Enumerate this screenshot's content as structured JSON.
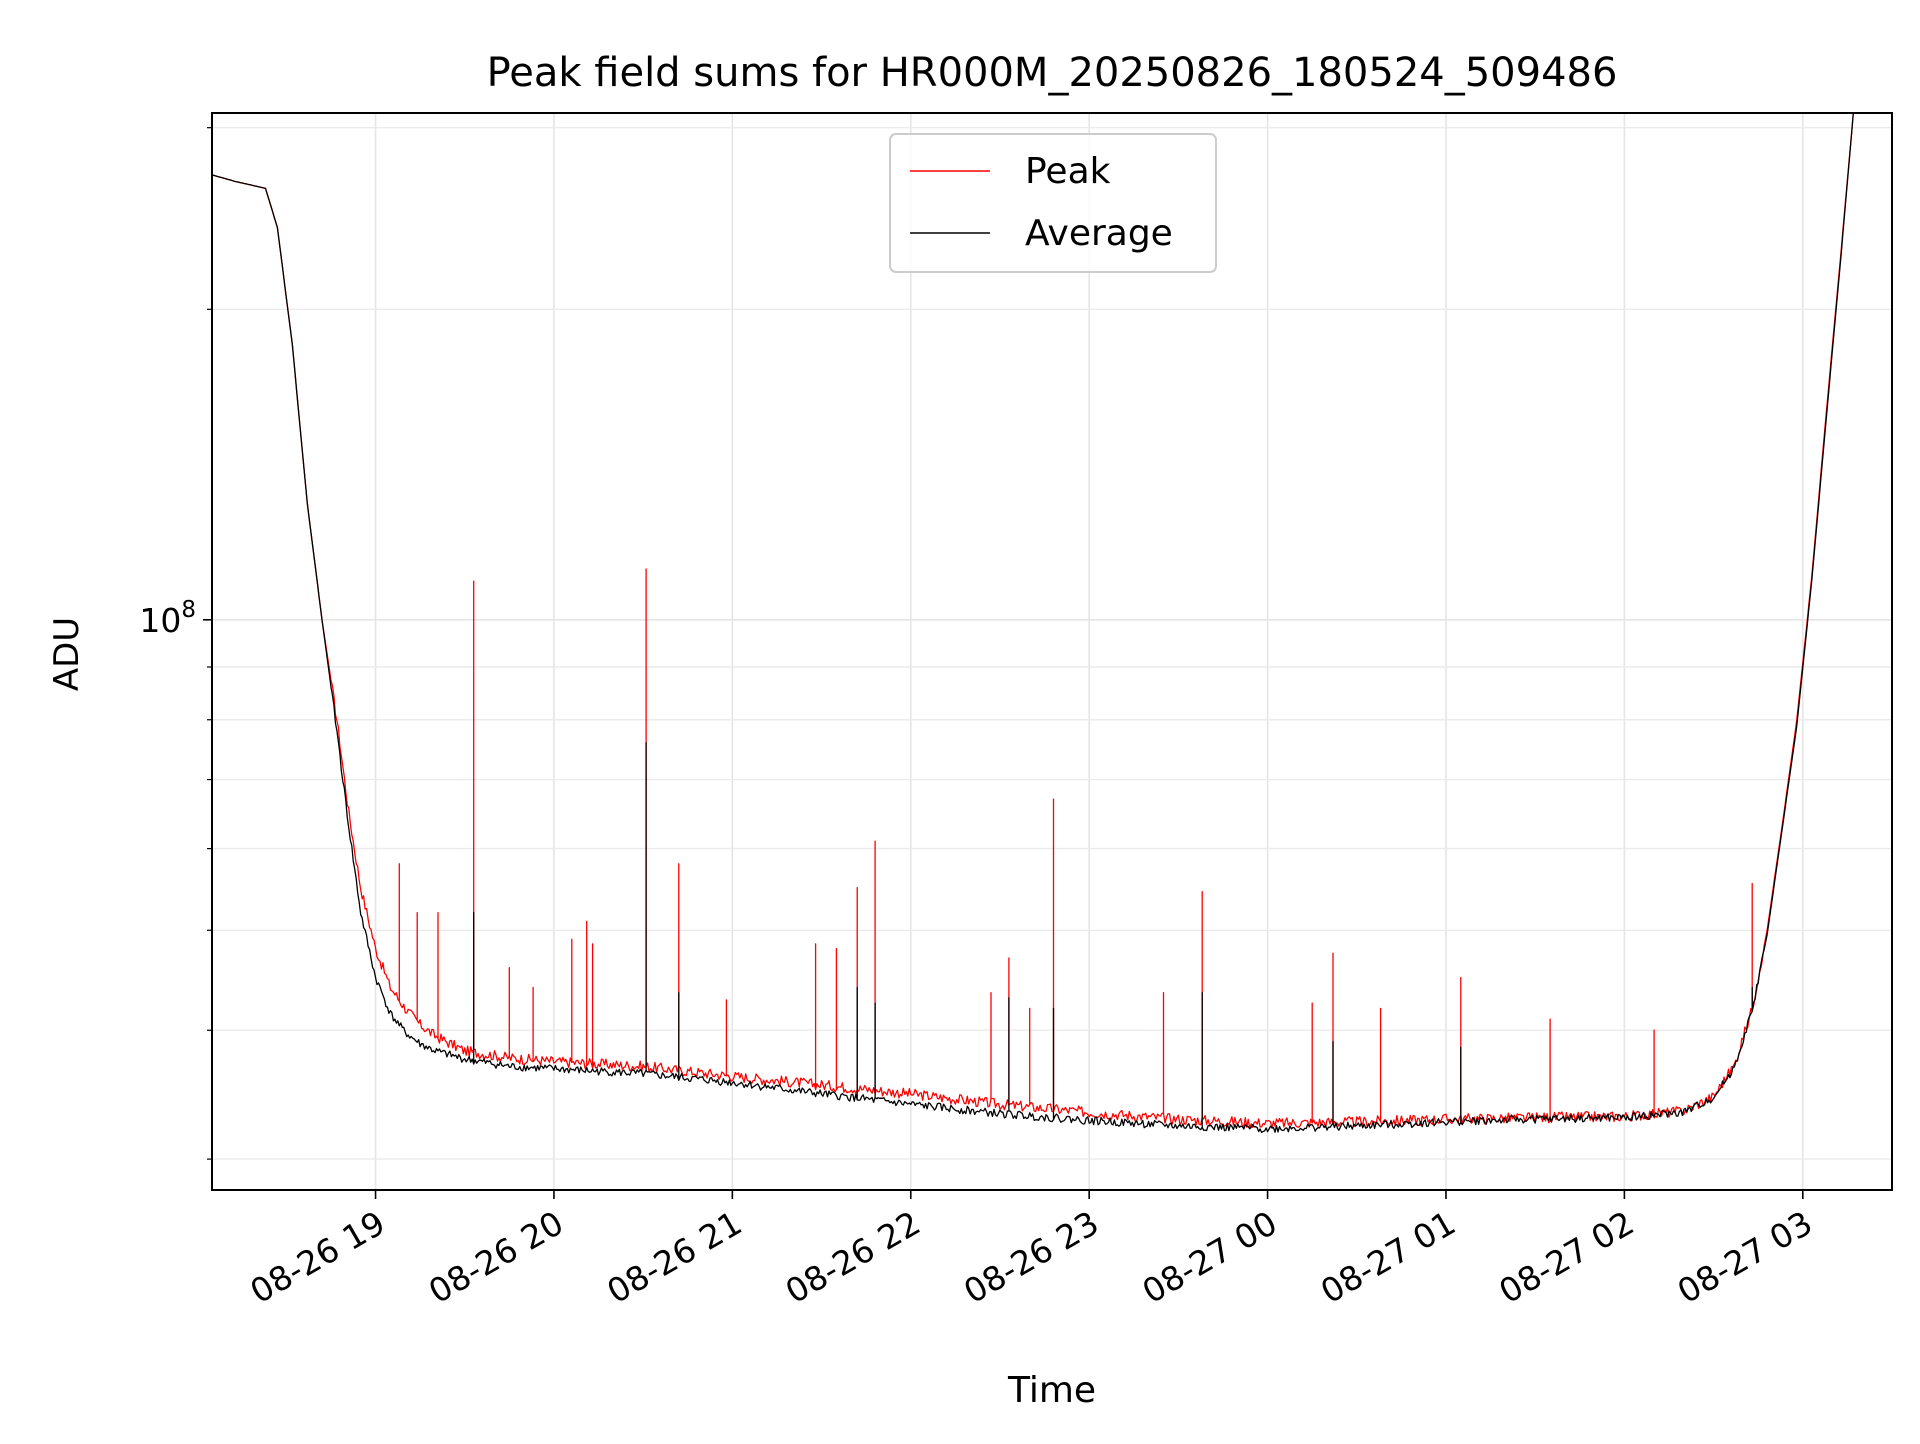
{
  "chart_data": {
    "type": "line",
    "title": "Peak field sums for HR000M_20250826_180524_509486",
    "xlabel": "Time",
    "ylabel": "ADU",
    "y_scale": "log",
    "ylim": [
      28000000,
      310000000
    ],
    "xlim": [
      "2025-08-26 18:05",
      "2025-08-27 03:30"
    ],
    "x_ticks": [
      {
        "x": "2025-08-26 19:00",
        "label": "08-26 19"
      },
      {
        "x": "2025-08-26 20:00",
        "label": "08-26 20"
      },
      {
        "x": "2025-08-26 21:00",
        "label": "08-26 21"
      },
      {
        "x": "2025-08-26 22:00",
        "label": "08-26 22"
      },
      {
        "x": "2025-08-26 23:00",
        "label": "08-26 23"
      },
      {
        "x": "2025-08-27 00:00",
        "label": "08-27 00"
      },
      {
        "x": "2025-08-27 01:00",
        "label": "08-27 01"
      },
      {
        "x": "2025-08-27 02:00",
        "label": "08-27 02"
      },
      {
        "x": "2025-08-27 03:00",
        "label": "08-27 03"
      }
    ],
    "y_major_ticks": [
      {
        "value": 100000000,
        "label_base": "10",
        "label_exp": "8"
      }
    ],
    "y_minor_ticks": [
      30000000,
      40000000,
      50000000,
      60000000,
      70000000,
      80000000,
      90000000,
      200000000,
      300000000
    ],
    "grid": true,
    "legend_position": "top-center",
    "series": [
      {
        "name": "Peak",
        "color": "#ff0000",
        "points": [
          [
            "2025-08-26 18:05",
            270000000
          ],
          [
            "2025-08-26 18:13",
            266000000
          ],
          [
            "2025-08-26 18:18",
            264000000
          ],
          [
            "2025-08-26 18:23",
            262000000
          ],
          [
            "2025-08-26 18:27",
            240000000
          ],
          [
            "2025-08-26 18:32",
            185000000
          ],
          [
            "2025-08-26 18:37",
            130000000
          ],
          [
            "2025-08-26 18:42",
            100000000
          ],
          [
            "2025-08-26 18:47",
            80000000
          ],
          [
            "2025-08-26 18:51",
            65000000
          ],
          [
            "2025-08-26 18:55",
            55000000
          ],
          [
            "2025-08-26 19:00",
            48000000
          ],
          [
            "2025-08-26 19:05",
            44000000
          ],
          [
            "2025-08-26 19:10",
            42000000
          ],
          [
            "2025-08-26 19:15",
            40500000
          ],
          [
            "2025-08-26 19:20",
            39500000
          ],
          [
            "2025-08-26 19:30",
            38200000
          ],
          [
            "2025-08-26 19:45",
            37600000
          ],
          [
            "2025-08-26 20:00",
            37300000
          ],
          [
            "2025-08-26 20:30",
            36900000
          ],
          [
            "2025-08-26 21:00",
            36100000
          ],
          [
            "2025-08-26 21:30",
            35400000
          ],
          [
            "2025-08-26 22:00",
            34700000
          ],
          [
            "2025-08-26 22:30",
            33900000
          ],
          [
            "2025-08-26 23:00",
            33300000
          ],
          [
            "2025-08-26 23:30",
            32800000
          ],
          [
            "2025-08-27 00:00",
            32500000
          ],
          [
            "2025-08-27 00:30",
            32600000
          ],
          [
            "2025-08-27 01:00",
            32800000
          ],
          [
            "2025-08-27 01:30",
            32900000
          ],
          [
            "2025-08-27 02:00",
            33000000
          ],
          [
            "2025-08-27 02:20",
            33400000
          ],
          [
            "2025-08-27 02:30",
            34500000
          ],
          [
            "2025-08-27 02:37",
            37000000
          ],
          [
            "2025-08-27 02:43",
            42000000
          ],
          [
            "2025-08-27 02:48",
            50000000
          ],
          [
            "2025-08-27 02:53",
            63000000
          ],
          [
            "2025-08-27 02:58",
            80000000
          ],
          [
            "2025-08-27 03:03",
            110000000
          ],
          [
            "2025-08-27 03:08",
            160000000
          ],
          [
            "2025-08-27 03:13",
            230000000
          ],
          [
            "2025-08-27 03:17",
            310000000
          ]
        ],
        "spikes": [
          [
            "2025-08-26 19:08",
            58000000
          ],
          [
            "2025-08-26 19:14",
            52000000
          ],
          [
            "2025-08-26 19:21",
            52000000
          ],
          [
            "2025-08-26 19:33",
            109000000
          ],
          [
            "2025-08-26 19:45",
            46000000
          ],
          [
            "2025-08-26 19:53",
            44000000
          ],
          [
            "2025-08-26 20:06",
            49000000
          ],
          [
            "2025-08-26 20:11",
            51000000
          ],
          [
            "2025-08-26 20:13",
            48500000
          ],
          [
            "2025-08-26 20:31",
            112000000
          ],
          [
            "2025-08-26 20:42",
            58000000
          ],
          [
            "2025-08-26 20:58",
            42800000
          ],
          [
            "2025-08-26 21:28",
            48500000
          ],
          [
            "2025-08-26 21:35",
            48000000
          ],
          [
            "2025-08-26 21:42",
            55000000
          ],
          [
            "2025-08-26 21:48",
            61000000
          ],
          [
            "2025-08-26 22:27",
            43500000
          ],
          [
            "2025-08-26 22:33",
            47000000
          ],
          [
            "2025-08-26 22:40",
            42000000
          ],
          [
            "2025-08-26 22:48",
            67000000
          ],
          [
            "2025-08-26 23:25",
            43500000
          ],
          [
            "2025-08-26 23:38",
            54500000
          ],
          [
            "2025-08-27 00:15",
            42500000
          ],
          [
            "2025-08-27 00:22",
            47500000
          ],
          [
            "2025-08-27 00:38",
            42000000
          ],
          [
            "2025-08-27 01:05",
            45000000
          ],
          [
            "2025-08-27 01:35",
            41000000
          ],
          [
            "2025-08-27 02:10",
            40000000
          ],
          [
            "2025-08-27 02:43",
            55500000
          ]
        ]
      },
      {
        "name": "Average",
        "color": "#000000",
        "points": [
          [
            "2025-08-26 18:05",
            270000000
          ],
          [
            "2025-08-26 18:13",
            266000000
          ],
          [
            "2025-08-26 18:18",
            264000000
          ],
          [
            "2025-08-26 18:23",
            262000000
          ],
          [
            "2025-08-26 18:27",
            240000000
          ],
          [
            "2025-08-26 18:32",
            185000000
          ],
          [
            "2025-08-26 18:37",
            130000000
          ],
          [
            "2025-08-26 18:42",
            100000000
          ],
          [
            "2025-08-26 18:47",
            78000000
          ],
          [
            "2025-08-26 18:51",
            63000000
          ],
          [
            "2025-08-26 18:55",
            52000000
          ],
          [
            "2025-08-26 19:00",
            45000000
          ],
          [
            "2025-08-26 19:05",
            41500000
          ],
          [
            "2025-08-26 19:10",
            39800000
          ],
          [
            "2025-08-26 19:15",
            38800000
          ],
          [
            "2025-08-26 19:20",
            38200000
          ],
          [
            "2025-08-26 19:30",
            37500000
          ],
          [
            "2025-08-26 19:45",
            36900000
          ],
          [
            "2025-08-26 20:00",
            36700000
          ],
          [
            "2025-08-26 20:30",
            36300000
          ],
          [
            "2025-08-26 21:00",
            35600000
          ],
          [
            "2025-08-26 21:30",
            34700000
          ],
          [
            "2025-08-26 22:00",
            33900000
          ],
          [
            "2025-08-26 22:30",
            33200000
          ],
          [
            "2025-08-26 23:00",
            32700000
          ],
          [
            "2025-08-26 23:30",
            32300000
          ],
          [
            "2025-08-27 00:00",
            32100000
          ],
          [
            "2025-08-27 00:30",
            32300000
          ],
          [
            "2025-08-27 01:00",
            32600000
          ],
          [
            "2025-08-27 01:30",
            32800000
          ],
          [
            "2025-08-27 02:00",
            32900000
          ],
          [
            "2025-08-27 02:20",
            33300000
          ],
          [
            "2025-08-27 02:30",
            34400000
          ],
          [
            "2025-08-27 02:37",
            36800000
          ],
          [
            "2025-08-27 02:43",
            41800000
          ],
          [
            "2025-08-27 02:48",
            49500000
          ],
          [
            "2025-08-27 02:53",
            62500000
          ],
          [
            "2025-08-27 02:58",
            79000000
          ],
          [
            "2025-08-27 03:03",
            109000000
          ],
          [
            "2025-08-27 03:08",
            158000000
          ],
          [
            "2025-08-27 03:13",
            228000000
          ],
          [
            "2025-08-27 03:17",
            310000000
          ]
        ],
        "spikes": [
          [
            "2025-08-26 19:33",
            52000000
          ],
          [
            "2025-08-26 20:31",
            76000000
          ],
          [
            "2025-08-26 20:42",
            43500000
          ],
          [
            "2025-08-26 21:42",
            44000000
          ],
          [
            "2025-08-26 21:48",
            42500000
          ],
          [
            "2025-08-26 22:33",
            43000000
          ],
          [
            "2025-08-26 22:48",
            42000000
          ],
          [
            "2025-08-26 23:38",
            43500000
          ],
          [
            "2025-08-27 00:22",
            39000000
          ],
          [
            "2025-08-27 01:05",
            38500000
          ],
          [
            "2025-08-27 02:43",
            44000000
          ]
        ]
      }
    ]
  }
}
